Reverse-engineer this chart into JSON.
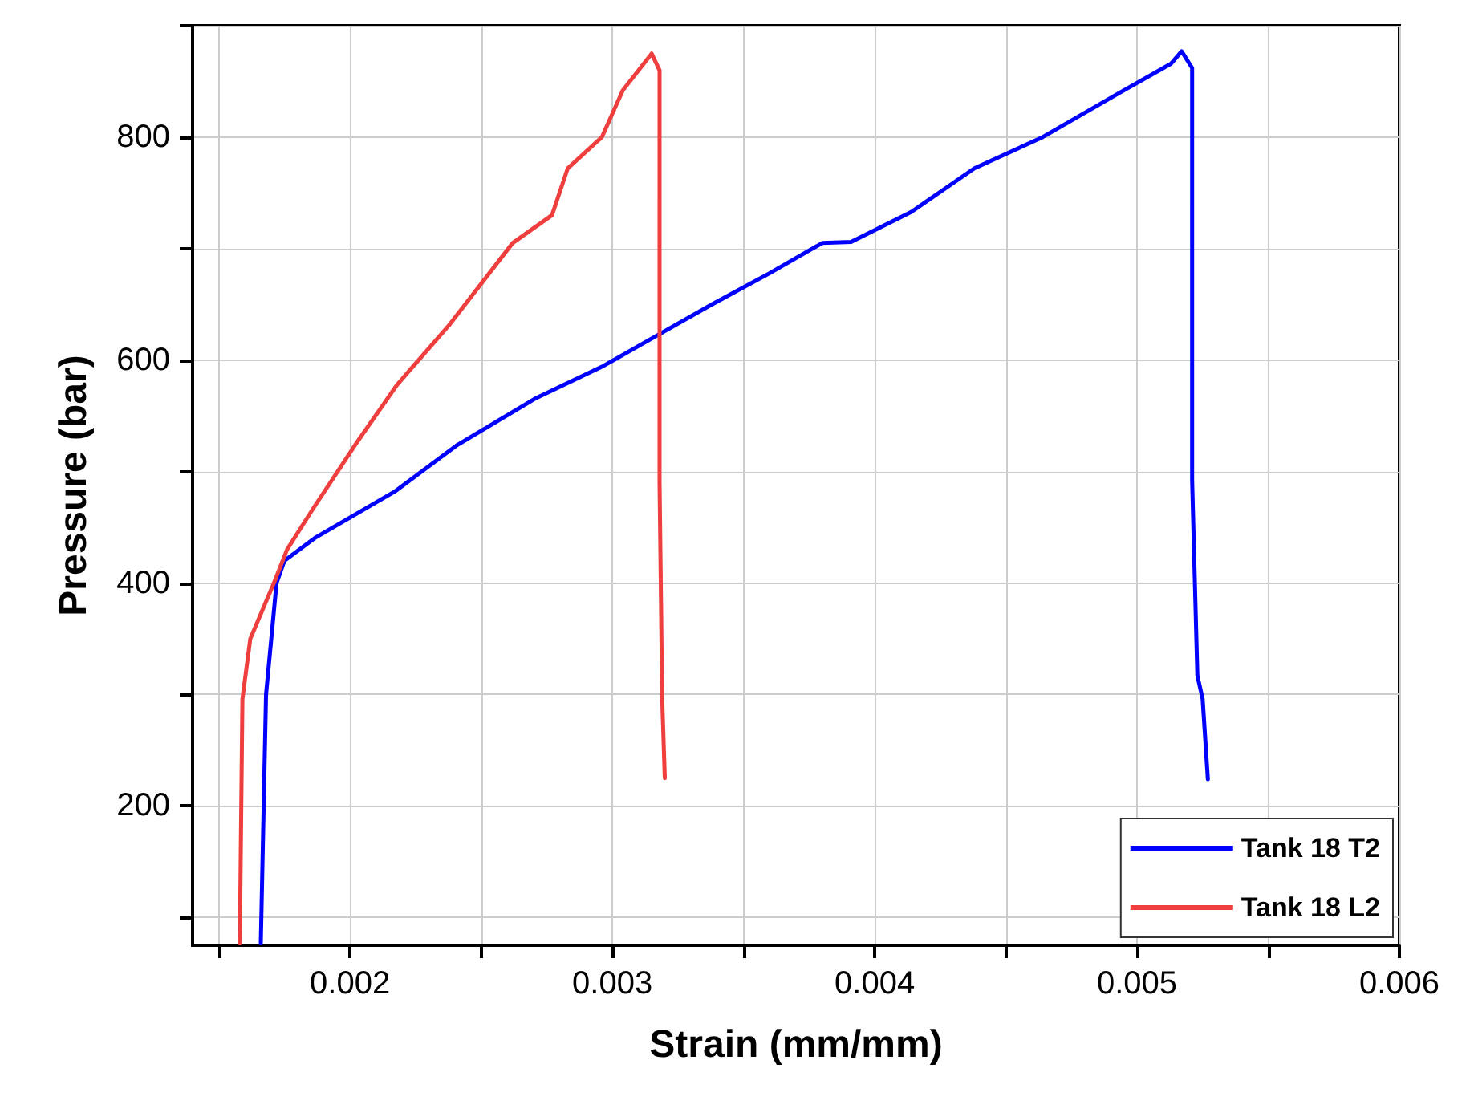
{
  "chart_data": {
    "type": "line",
    "xlabel": "Strain (mm/mm)",
    "ylabel": "Pressure (bar)",
    "xlim": [
      0.0014,
      0.006
    ],
    "ylim": [
      75,
      900
    ],
    "xticks": [
      {
        "value": 0.0015,
        "label": null
      },
      0.002,
      {
        "value": 0.0025,
        "label": null
      },
      0.003,
      {
        "value": 0.0035,
        "label": null
      },
      0.004,
      {
        "value": 0.0045,
        "label": null
      },
      0.005,
      {
        "value": 0.0055,
        "label": null
      },
      0.006
    ],
    "yticks": [
      {
        "value": 100,
        "label": null
      },
      200,
      {
        "value": 300,
        "label": null
      },
      400,
      {
        "value": 500,
        "label": null
      },
      600,
      {
        "value": 700,
        "label": null
      },
      800,
      {
        "value": 900,
        "label": null
      }
    ],
    "grid": true,
    "legend": "bottom right",
    "marker": "none",
    "line_style": "solid",
    "series": [
      {
        "name": "Tank 18 T2",
        "color": "#0000ff",
        "x": [
          0.00166,
          0.00168,
          0.0017,
          0.00172,
          0.00175,
          0.00187,
          0.00217,
          0.00241,
          0.00271,
          0.00296,
          0.00317,
          0.00338,
          0.0036,
          0.0038,
          0.00391,
          0.00414,
          0.00438,
          0.00464,
          0.00492,
          0.00513,
          0.00517,
          0.00521,
          0.00521,
          0.00523,
          0.00525,
          0.00527
        ],
        "values": [
          77,
          300,
          350,
          400,
          420,
          441,
          482,
          524,
          566,
          594,
          622,
          650,
          678,
          705,
          706,
          733,
          772,
          800,
          838,
          866,
          877,
          862,
          492,
          317,
          296,
          224
        ]
      },
      {
        "name": "Tank 18 L2",
        "color": "#ef3e3e",
        "x": [
          0.00158,
          0.00159,
          0.00162,
          0.00171,
          0.00176,
          0.00186,
          0.00202,
          0.00218,
          0.00238,
          0.00262,
          0.00277,
          0.00283,
          0.00296,
          0.00304,
          0.00315,
          0.00318,
          0.00318,
          0.00319,
          0.0032
        ],
        "values": [
          77,
          296,
          350,
          400,
          430,
          467,
          524,
          578,
          632,
          705,
          730,
          772,
          800,
          842,
          875,
          860,
          490,
          296,
          225
        ]
      }
    ]
  }
}
